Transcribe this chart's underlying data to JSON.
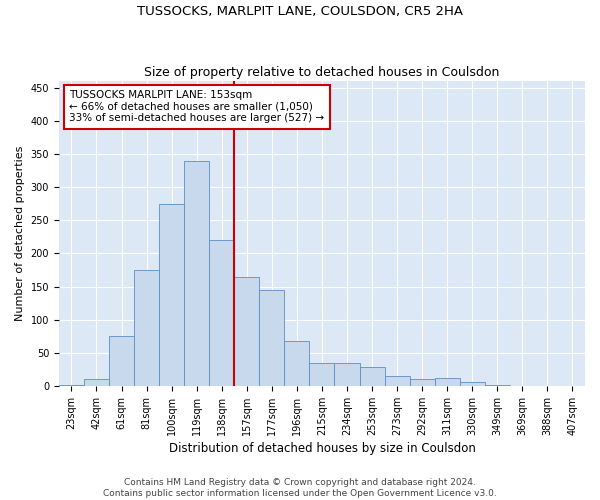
{
  "title": "TUSSOCKS, MARLPIT LANE, COULSDON, CR5 2HA",
  "subtitle": "Size of property relative to detached houses in Coulsdon",
  "xlabel": "Distribution of detached houses by size in Coulsdon",
  "ylabel": "Number of detached properties",
  "categories": [
    "23sqm",
    "42sqm",
    "61sqm",
    "81sqm",
    "100sqm",
    "119sqm",
    "138sqm",
    "157sqm",
    "177sqm",
    "196sqm",
    "215sqm",
    "234sqm",
    "253sqm",
    "273sqm",
    "292sqm",
    "311sqm",
    "330sqm",
    "349sqm",
    "369sqm",
    "388sqm",
    "407sqm"
  ],
  "bar_heights": [
    2,
    10,
    75,
    175,
    275,
    340,
    220,
    165,
    145,
    68,
    35,
    35,
    28,
    15,
    10,
    12,
    6,
    1,
    0,
    0,
    0
  ],
  "bar_color": "#c8d8ed",
  "bar_edge_color": "#5b8ec4",
  "vline_x": 6.5,
  "vline_color": "#cc0000",
  "annotation_text": "TUSSOCKS MARLPIT LANE: 153sqm\n← 66% of detached houses are smaller (1,050)\n33% of semi-detached houses are larger (527) →",
  "annotation_box_color": "white",
  "annotation_box_edge_color": "#cc0000",
  "ylim": [
    0,
    460
  ],
  "yticks": [
    0,
    50,
    100,
    150,
    200,
    250,
    300,
    350,
    400,
    450
  ],
  "background_color": "#dce8f5",
  "grid_color": "white",
  "footer_line1": "Contains HM Land Registry data © Crown copyright and database right 2024.",
  "footer_line2": "Contains public sector information licensed under the Open Government Licence v3.0.",
  "title_fontsize": 9.5,
  "subtitle_fontsize": 9,
  "xlabel_fontsize": 8.5,
  "ylabel_fontsize": 8,
  "tick_fontsize": 7,
  "annotation_fontsize": 7.5,
  "footer_fontsize": 6.5
}
